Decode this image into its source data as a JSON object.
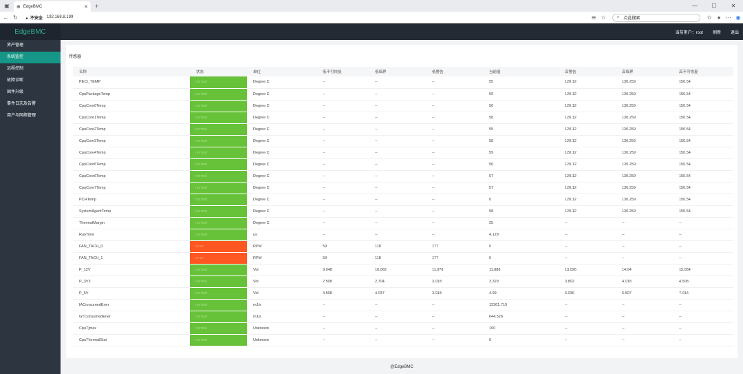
{
  "browser": {
    "tab_title": "EdgeBMC",
    "insecure_label": "不安全",
    "url": "192.168.8.199",
    "search_placeholder": "点此搜索"
  },
  "app": {
    "brand": "EdgeBMC",
    "current_user": "当前用户：root",
    "refresh": "刷新",
    "logout": "退出",
    "footer": "@EdgeBMC"
  },
  "sidebar": {
    "items": [
      {
        "label": "资产管理"
      },
      {
        "label": "系统监控"
      },
      {
        "label": "远程控制"
      },
      {
        "label": "故障诊断"
      },
      {
        "label": "固件升级"
      },
      {
        "label": "事件日志及告警"
      },
      {
        "label": "用户与网络管理"
      }
    ],
    "active_index": 1
  },
  "page": {
    "title": "传感器",
    "columns": [
      "名称",
      "状态",
      "单位",
      "低不可恢复",
      "低临界",
      "低警告",
      "当前值",
      "高警告",
      "高临界",
      "高不可恢复"
    ],
    "rows": [
      [
        "PECI_TEMP",
        "normal",
        "Degree C",
        "--",
        "--",
        "--",
        "55",
        "120.12",
        "130.259",
        "150.54"
      ],
      [
        "CpuPackageTemp",
        "normal",
        "Degree C",
        "--",
        "--",
        "--",
        "59",
        "120.12",
        "130.259",
        "150.54"
      ],
      [
        "CpuCore0Temp",
        "normal",
        "Degree C",
        "--",
        "--",
        "--",
        "56",
        "120.12",
        "130.259",
        "150.54"
      ],
      [
        "CpuCore1Temp",
        "normal",
        "Degree C",
        "--",
        "--",
        "--",
        "58",
        "120.12",
        "130.259",
        "150.54"
      ],
      [
        "CpuCore2Temp",
        "normal",
        "Degree C",
        "--",
        "--",
        "--",
        "55",
        "120.12",
        "130.259",
        "150.54"
      ],
      [
        "CpuCore3Temp",
        "normal",
        "Degree C",
        "--",
        "--",
        "--",
        "58",
        "120.12",
        "130.259",
        "150.54"
      ],
      [
        "CpuCore4Temp",
        "normal",
        "Degree C",
        "--",
        "--",
        "--",
        "59",
        "120.12",
        "130.259",
        "150.54"
      ],
      [
        "CpuCore5Temp",
        "normal",
        "Degree C",
        "--",
        "--",
        "--",
        "56",
        "120.12",
        "130.259",
        "150.54"
      ],
      [
        "CpuCore6Temp",
        "normal",
        "Degree C",
        "--",
        "--",
        "--",
        "57",
        "120.12",
        "130.259",
        "150.54"
      ],
      [
        "CpuCore7Temp",
        "normal",
        "Degree C",
        "--",
        "--",
        "--",
        "57",
        "120.12",
        "130.259",
        "150.54"
      ],
      [
        "PCHTemp",
        "normal",
        "Degree C",
        "--",
        "--",
        "--",
        "0",
        "120.12",
        "130.259",
        "150.54"
      ],
      [
        "SystemAgentTemp",
        "normal",
        "Degree C",
        "--",
        "--",
        "--",
        "58",
        "120.12",
        "130.259",
        "150.54"
      ],
      [
        "ThermalMargin",
        "normal",
        "Degree C",
        "--",
        "--",
        "--",
        "25",
        "--",
        "--",
        "--"
      ],
      [
        "RunTime",
        "normal",
        "us",
        "--",
        "--",
        "--",
        "4.129",
        "--",
        "--",
        "--"
      ],
      [
        "FAN_TACH_0",
        "error",
        "RPM",
        "59",
        "118",
        "177",
        "0",
        "--",
        "--",
        "--"
      ],
      [
        "FAN_TACH_1",
        "error",
        "RPM",
        "59",
        "118",
        "177",
        "0",
        "--",
        "--",
        "--"
      ],
      [
        "P_12V",
        "normal",
        "Vol",
        "9.048",
        "10.062",
        "11.076",
        "11.888",
        "13.026",
        "14.04",
        "15.054"
      ],
      [
        "P_3V3",
        "normal",
        "Vol",
        "2.508",
        "2.704",
        "3.018",
        "3.329",
        "3.802",
        "4.018",
        "4.508"
      ],
      [
        "P_5V",
        "normal",
        "Vol",
        "4.508",
        "4.037",
        "3.018",
        "4.99",
        "6.036",
        "6.507",
        "7.016"
      ],
      [
        "IAConsumedEner",
        "normal",
        "mJ/s",
        "--",
        "--",
        "--",
        "12361.719",
        "--",
        "--",
        "--"
      ],
      [
        "GTConsumedEner",
        "normal",
        "mJ/s",
        "--",
        "--",
        "--",
        "644.526",
        "--",
        "--",
        "--"
      ],
      [
        "CpuTjmax",
        "normal",
        "Unknown",
        "--",
        "--",
        "--",
        "100",
        "--",
        "--",
        "--"
      ],
      [
        "CpuThermalStat",
        "normal",
        "Unknown",
        "--",
        "--",
        "--",
        "0",
        "--",
        "--",
        "--"
      ]
    ]
  },
  "colors": {
    "status_ok": "#67c23a",
    "status_error": "#ff5722",
    "menu_active": "#159686",
    "brand_text": "#30a995"
  }
}
